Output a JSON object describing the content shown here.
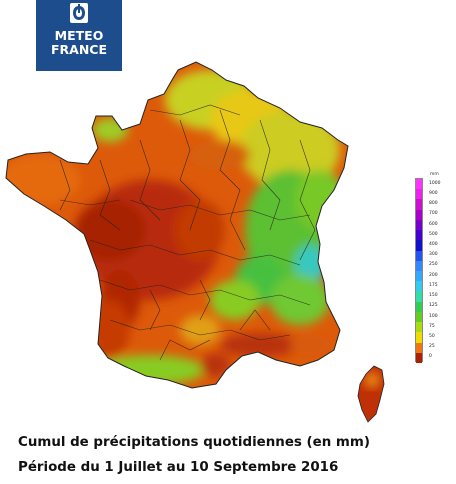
{
  "logo": {
    "line1": "METEO",
    "line2": "FRANCE",
    "color": "#1d4d8c"
  },
  "legend": {
    "unit": "mm",
    "stops": [
      {
        "label": "1000",
        "color": "#ff33ff"
      },
      {
        "label": "900",
        "color": "#ee22ee"
      },
      {
        "label": "800",
        "color": "#cc11cc"
      },
      {
        "label": "700",
        "color": "#aa00cc"
      },
      {
        "label": "600",
        "color": "#7700cc"
      },
      {
        "label": "500",
        "color": "#4400cc"
      },
      {
        "label": "400",
        "color": "#1111cc"
      },
      {
        "label": "300",
        "color": "#2255ee"
      },
      {
        "label": "250",
        "color": "#3388ff"
      },
      {
        "label": "200",
        "color": "#33aaff"
      },
      {
        "label": "175",
        "color": "#33ccee"
      },
      {
        "label": "150",
        "color": "#33ddaa"
      },
      {
        "label": "125",
        "color": "#33cc55"
      },
      {
        "label": "100",
        "color": "#66cc22"
      },
      {
        "label": "75",
        "color": "#aadd11"
      },
      {
        "label": "50",
        "color": "#eedd00"
      },
      {
        "label": "25",
        "color": "#ee7711"
      },
      {
        "label": "0",
        "color": "#aa2200"
      }
    ]
  },
  "caption": {
    "line1": "Cumul de précipitations quotidiennes (en mm)",
    "line2": "Période du 1 Juillet au 10 Septembre 2016"
  }
}
